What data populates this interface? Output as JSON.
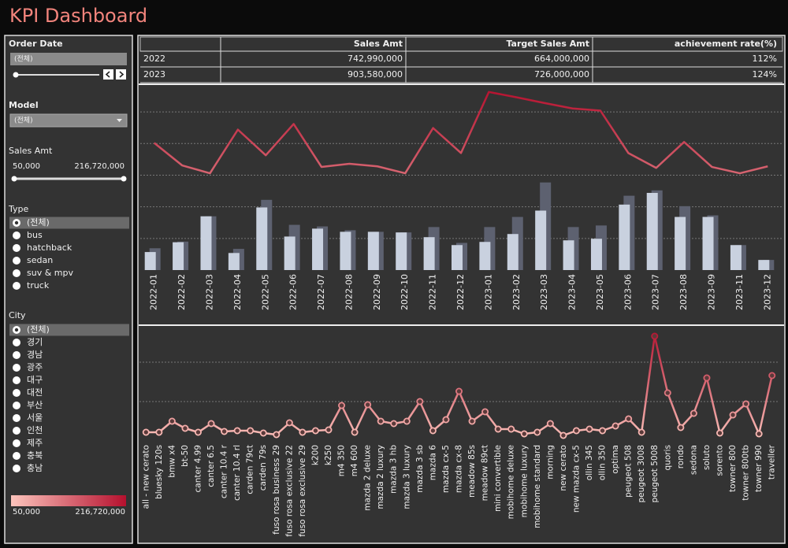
{
  "header": {
    "title": "KPI Dashboard"
  },
  "color_scale": [
    "#fcc4bc",
    "#b5102e"
  ],
  "filters": {
    "order_date": {
      "label": "Order Date",
      "value": "(전체)"
    },
    "model": {
      "label": "Model",
      "value": "(전체)"
    },
    "sales_amt": {
      "label": "Sales Amt",
      "min": "50,000",
      "max": "216,720,000"
    },
    "type": {
      "label": "Type",
      "options": [
        "(전체)",
        "bus",
        "hatchback",
        "sedan",
        "suv & mpv",
        "truck"
      ],
      "selected": 0
    },
    "city": {
      "label": "City",
      "options": [
        "(전체)",
        "경기",
        "경남",
        "광주",
        "대구",
        "대전",
        "부산",
        "서울",
        "인천",
        "제주",
        "충북",
        "충남"
      ],
      "selected": 0
    },
    "color_legend": {
      "min": "50,000",
      "max": "216,720,000"
    }
  },
  "table": {
    "columns": [
      "Sales Amt",
      "Target Sales Amt",
      "achievement rate(%)"
    ],
    "rows": [
      [
        "2022",
        "742,990,000",
        "664,000,000",
        "112%"
      ],
      [
        "2023",
        "903,580,000",
        "726,000,000",
        "124%"
      ]
    ]
  },
  "chart_data": [
    {
      "type": "bar",
      "categories": [
        "2022-01",
        "2022-02",
        "2022-03",
        "2022-04",
        "2022-05",
        "2022-06",
        "2022-07",
        "2022-08",
        "2022-09",
        "2022-10",
        "2022-11",
        "2022-12",
        "2023-01",
        "2023-02",
        "2023-03",
        "2023-04",
        "2023-05",
        "2023-06",
        "2023-07",
        "2023-08",
        "2023-09",
        "2023-11",
        "2023-12"
      ],
      "series": [
        {
          "color": "#c9d1df",
          "values": [
            0.57,
            0.88,
            1.7,
            0.54,
            1.98,
            1.06,
            1.31,
            1.21,
            1.21,
            1.19,
            1.04,
            0.79,
            0.89,
            1.14,
            1.88,
            0.94,
            0.99,
            2.07,
            2.44,
            1.68,
            1.68,
            0.79,
            0.32
          ]
        },
        {
          "color": "#5d6170",
          "values": [
            0.69,
            0.9,
            1.7,
            0.67,
            2.22,
            1.43,
            1.38,
            1.26,
            1.21,
            1.19,
            1.36,
            0.86,
            1.36,
            1.68,
            2.77,
            1.36,
            1.41,
            2.35,
            2.52,
            2.02,
            1.73,
            0.79,
            0.32
          ]
        },
        {
          "type": "line",
          "axis": "y2",
          "values": [
            4.02,
            3.31,
            3.06,
            4.44,
            3.63,
            4.62,
            3.26,
            3.36,
            3.28,
            3.06,
            4.49,
            3.7,
            5.63,
            5.46,
            5.28,
            5.11,
            5.04,
            3.7,
            3.23,
            4.05,
            3.26,
            3.06,
            3.28
          ]
        }
      ],
      "ylim": [
        0,
        5.75
      ],
      "yticks": [
        1,
        2,
        3,
        4,
        5
      ],
      "y2lim": [
        0,
        5.75
      ],
      "grid": true
    },
    {
      "type": "line",
      "categories": [
        "all - new cerato",
        "bluesky 120s",
        "bmw x4",
        "bt-50",
        "canter 4.99",
        "canter 6.5",
        "canter 10.4 r",
        "canter 10.4 rl",
        "carden 79ct",
        "carden 79s",
        "fuso rosa business 29",
        "fuso rosa exclusive 22",
        "fuso rosa exclusive 29",
        "k200",
        "k250",
        "m4 350",
        "m4 600",
        "mazda 2 deluxe",
        "mazda 2 luxury",
        "mazda 3 hb",
        "mazda 3 luxury",
        "mazda 3 sb",
        "mazda 6",
        "mazda cx-5",
        "mazda cx-8",
        "meadow 85s",
        "meadow 89ct",
        "mini convertible",
        "mobihome deluxe",
        "mobihome luxury",
        "mobihome standard",
        "morning",
        "new cerato",
        "new mazda cx-5",
        "ollin 345",
        "ollin 350",
        "optima",
        "peugeot 508",
        "peugeot 3008",
        "peugeot 5008",
        "quoris",
        "rondo",
        "sedona",
        "soluto",
        "sorento",
        "towner 800",
        "towner 800tb",
        "towner 990",
        "traveller"
      ],
      "values": [
        0.22,
        0.22,
        0.5,
        0.32,
        0.22,
        0.44,
        0.24,
        0.26,
        0.26,
        0.2,
        0.16,
        0.46,
        0.22,
        0.26,
        0.28,
        0.9,
        0.22,
        0.92,
        0.5,
        0.44,
        0.5,
        1.0,
        0.26,
        0.54,
        1.26,
        0.5,
        0.74,
        0.3,
        0.3,
        0.18,
        0.22,
        0.44,
        0.14,
        0.26,
        0.3,
        0.26,
        0.38,
        0.56,
        0.22,
        2.66,
        1.22,
        0.34,
        0.7,
        1.6,
        0.2,
        0.66,
        0.94,
        0.18,
        1.66
      ],
      "ylim": [
        0,
        2.84
      ],
      "yticks": [
        1,
        2
      ],
      "grid": true,
      "markers": true
    }
  ]
}
